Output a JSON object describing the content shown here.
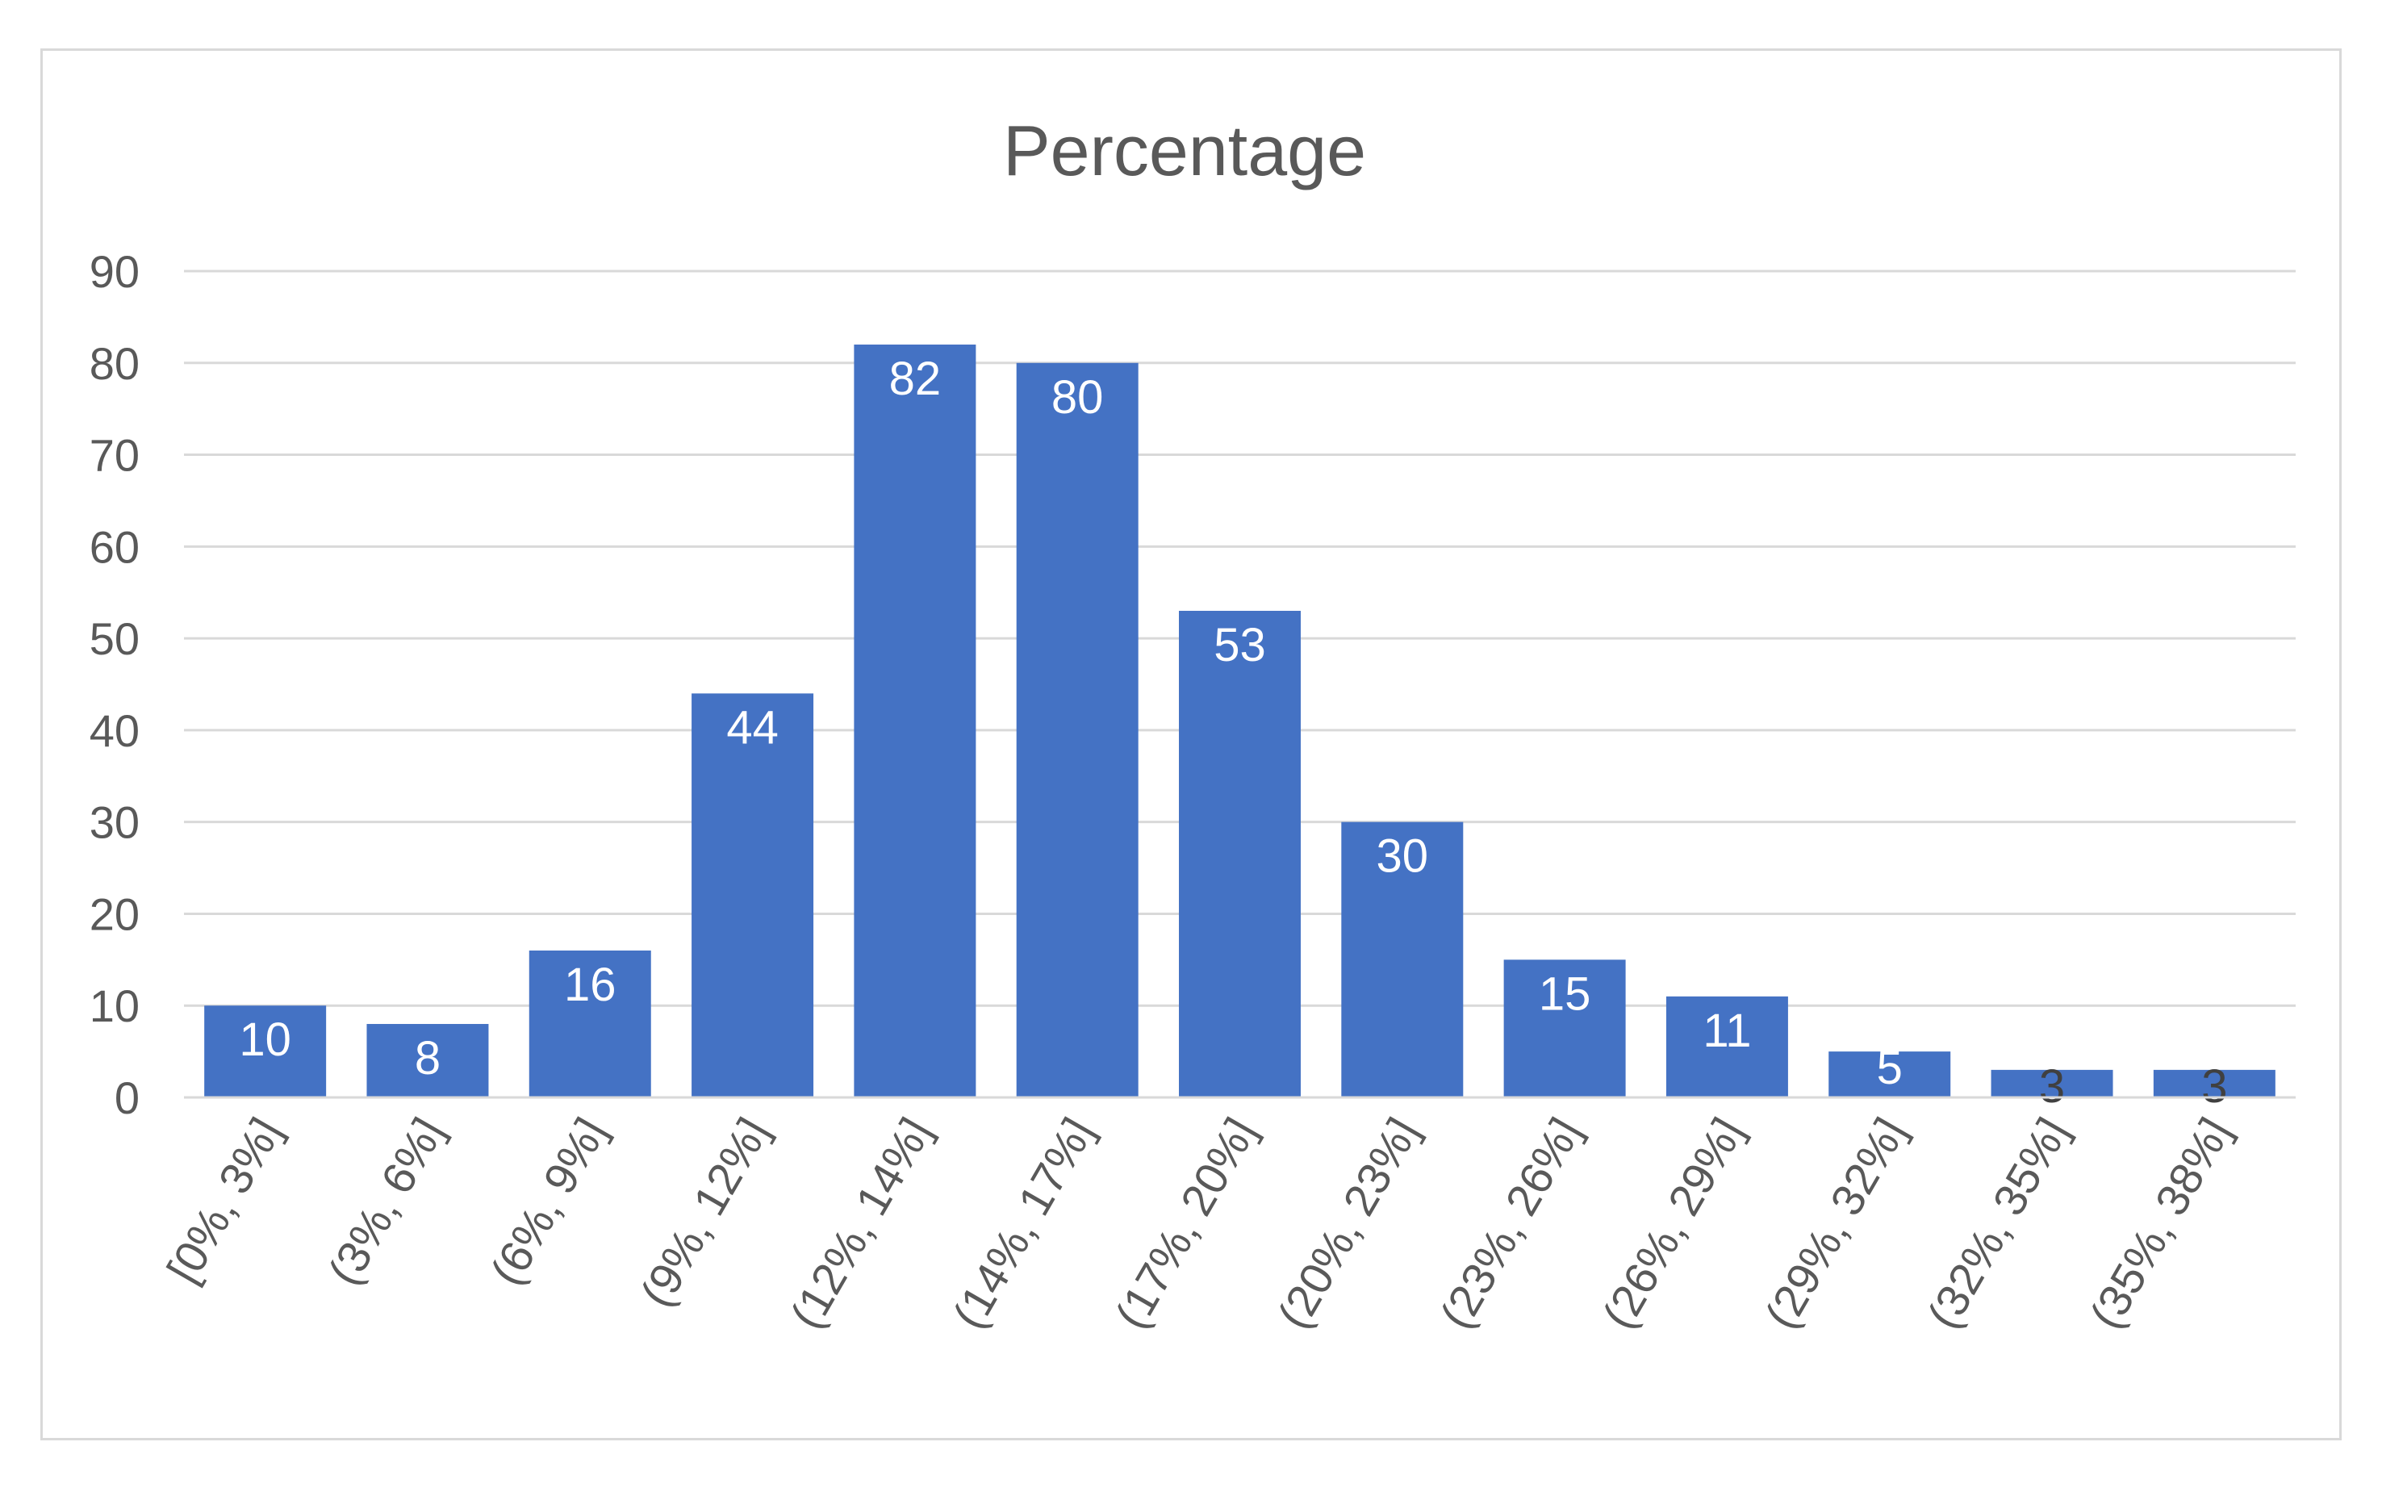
{
  "chart_data": {
    "type": "bar",
    "title": "Percentage",
    "xlabel": "",
    "ylabel": "",
    "categories": [
      "[0%, 3%]",
      "(3%, 6%]",
      "(6%, 9%]",
      "(9%, 12%]",
      "(12%, 14%]",
      "(14%, 17%]",
      "(17%, 20%]",
      "(20%, 23%]",
      "(23%, 26%]",
      "(26%, 29%]",
      "(29%, 32%]",
      "(32%, 35%]",
      "(35%, 38%]"
    ],
    "values": [
      10,
      8,
      16,
      44,
      82,
      80,
      53,
      30,
      15,
      11,
      5,
      3,
      3
    ],
    "ylim": [
      0,
      90
    ],
    "yticks": [
      0,
      10,
      20,
      30,
      40,
      50,
      60,
      70,
      80,
      90
    ],
    "grid": true,
    "legend": "none",
    "colors": {
      "bar": "#4472C4",
      "label_inside": "#ffffff",
      "label_small": "#404040",
      "grid": "#d9d9d9",
      "axis_text": "#595959"
    }
  }
}
